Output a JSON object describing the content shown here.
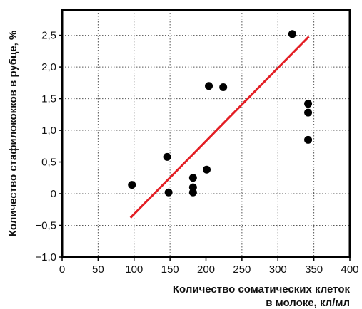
{
  "chart_data": {
    "type": "scatter",
    "title": "",
    "xlabel": "Количество соматических клеток в молоке, кл/мл",
    "xlabel_lines": [
      "Количество соматических клеток",
      "в молоке, кл/мл"
    ],
    "ylabel": "Количество стафилококков в рубце, %",
    "xlim": [
      0,
      400
    ],
    "ylim": [
      -1.0,
      2.9
    ],
    "x_ticks": [
      0,
      50,
      100,
      150,
      200,
      250,
      300,
      350,
      400
    ],
    "x_tick_labels": [
      "0",
      "50",
      "100",
      "150",
      "200",
      "250",
      "300",
      "350",
      "400"
    ],
    "y_ticks": [
      -1.0,
      -0.5,
      0,
      0.5,
      1.0,
      1.5,
      2.0,
      2.5
    ],
    "y_tick_labels": [
      "−1,0",
      "−0,5",
      "0",
      "0,5",
      "1,0",
      "1,5",
      "2,0",
      "2,5"
    ],
    "grid": true,
    "grid_style": "dotted",
    "series": [
      {
        "points": [
          {
            "x": 97,
            "y": 0.14
          },
          {
            "x": 146,
            "y": 0.58
          },
          {
            "x": 148,
            "y": 0.02
          },
          {
            "x": 182,
            "y": 0.25
          },
          {
            "x": 182,
            "y": 0.1
          },
          {
            "x": 182,
            "y": 0.02
          },
          {
            "x": 201,
            "y": 0.38
          },
          {
            "x": 204,
            "y": 1.7
          },
          {
            "x": 224,
            "y": 1.68
          },
          {
            "x": 320,
            "y": 2.52
          },
          {
            "x": 342,
            "y": 1.42
          },
          {
            "x": 342,
            "y": 1.28
          },
          {
            "x": 342,
            "y": 0.85
          }
        ],
        "color": "#000000"
      }
    ],
    "trendline": {
      "points": [
        {
          "x": 95,
          "y": -0.38
        },
        {
          "x": 343,
          "y": 2.48
        }
      ],
      "color": "#e31e24"
    }
  }
}
